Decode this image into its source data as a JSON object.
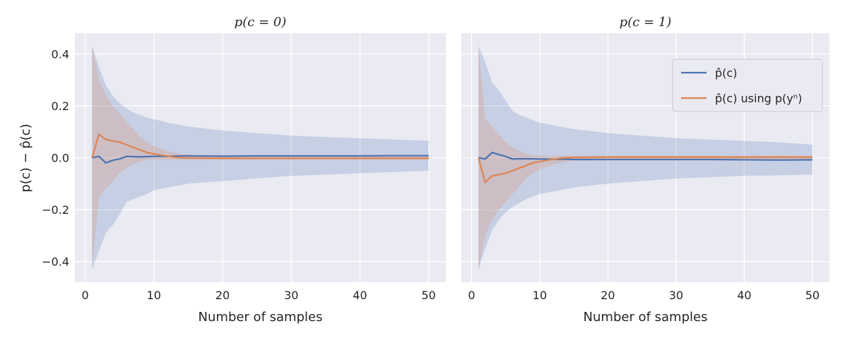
{
  "figure": {
    "ylabel": "p(c) − p̂(c)"
  },
  "legend": {
    "entries": [
      {
        "label": "p̂(c)",
        "color": "#4c72b0"
      },
      {
        "label": "p̂(c) using p(yⁿ)",
        "color": "#dd8452"
      }
    ],
    "placement": "top-right of right panel"
  },
  "chart_data": [
    {
      "type": "line",
      "title": "p(c = 0)",
      "xlabel": "Number of samples",
      "ylabel": "p(c) − p̂(c)",
      "xlim": [
        -1.5,
        52.5
      ],
      "ylim": [
        -0.48,
        0.48
      ],
      "xticks": [
        0,
        10,
        20,
        30,
        40,
        50
      ],
      "xtick_labels": [
        "0",
        "10",
        "20",
        "30",
        "40",
        "50"
      ],
      "yticks": [
        -0.4,
        -0.2,
        0.0,
        0.2,
        0.4
      ],
      "ytick_labels": [
        "−0.4",
        "−0.2",
        "0.0",
        "0.2",
        "0.4"
      ],
      "x": [
        1,
        2,
        3,
        4,
        5,
        6,
        7,
        8,
        9,
        10,
        11,
        12,
        13,
        14,
        15,
        20,
        25,
        30,
        35,
        40,
        45,
        50
      ],
      "series": [
        {
          "name": "p̂(c)",
          "color": "#4c72b0",
          "values": [
            0.0,
            0.005,
            -0.02,
            -0.01,
            -0.005,
            0.005,
            0.004,
            0.003,
            0.004,
            0.005,
            0.005,
            0.005,
            0.006,
            0.007,
            0.007,
            0.006,
            0.007,
            0.007,
            0.007,
            0.007,
            0.008,
            0.008
          ],
          "band_upper": [
            0.43,
            0.35,
            0.28,
            0.24,
            0.21,
            0.19,
            0.175,
            0.165,
            0.155,
            0.148,
            0.142,
            0.135,
            0.13,
            0.125,
            0.12,
            0.105,
            0.095,
            0.085,
            0.08,
            0.075,
            0.07,
            0.065
          ],
          "band_lower": [
            -0.43,
            -0.36,
            -0.29,
            -0.26,
            -0.22,
            -0.17,
            -0.16,
            -0.15,
            -0.14,
            -0.125,
            -0.12,
            -0.115,
            -0.11,
            -0.105,
            -0.1,
            -0.09,
            -0.08,
            -0.07,
            -0.065,
            -0.06,
            -0.055,
            -0.05
          ]
        },
        {
          "name": "p̂(c) using p(yⁿ)",
          "color": "#dd8452",
          "values": [
            0.0,
            0.09,
            0.07,
            0.065,
            0.06,
            0.05,
            0.04,
            0.03,
            0.02,
            0.015,
            0.01,
            0.006,
            0.002,
            0.0,
            -0.001,
            -0.002,
            -0.002,
            -0.002,
            -0.002,
            -0.002,
            -0.002,
            -0.002
          ],
          "band_upper": [
            0.43,
            0.3,
            0.24,
            0.2,
            0.17,
            0.14,
            0.11,
            0.08,
            0.06,
            0.045,
            0.035,
            0.025,
            0.02,
            0.015,
            0.012,
            0.01,
            0.01,
            0.01,
            0.01,
            0.01,
            0.01,
            0.01
          ],
          "band_lower": [
            -0.43,
            -0.15,
            -0.12,
            -0.09,
            -0.06,
            -0.04,
            -0.025,
            -0.015,
            -0.01,
            -0.008,
            -0.008,
            -0.008,
            -0.008,
            -0.008,
            -0.008,
            -0.008,
            -0.008,
            -0.008,
            -0.008,
            -0.008,
            -0.008,
            -0.008
          ]
        }
      ]
    },
    {
      "type": "line",
      "title": "p(c = 1)",
      "xlabel": "Number of samples",
      "ylabel": "",
      "xlim": [
        -1.5,
        52.5
      ],
      "ylim": [
        -0.48,
        0.48
      ],
      "xticks": [
        0,
        10,
        20,
        30,
        40,
        50
      ],
      "xtick_labels": [
        "0",
        "10",
        "20",
        "30",
        "40",
        "50"
      ],
      "yticks": [
        -0.4,
        -0.2,
        0.0,
        0.2,
        0.4
      ],
      "ytick_labels": [],
      "x": [
        1,
        2,
        3,
        4,
        5,
        6,
        7,
        8,
        9,
        10,
        11,
        12,
        13,
        14,
        15,
        20,
        25,
        30,
        35,
        40,
        45,
        50
      ],
      "series": [
        {
          "name": "p̂(c)",
          "color": "#4c72b0",
          "values": [
            0.0,
            -0.005,
            0.02,
            0.012,
            0.005,
            -0.005,
            -0.004,
            -0.004,
            -0.004,
            -0.005,
            -0.005,
            -0.006,
            -0.006,
            -0.006,
            -0.007,
            -0.007,
            -0.007,
            -0.007,
            -0.007,
            -0.008,
            -0.009,
            -0.008
          ],
          "band_upper": [
            0.43,
            0.37,
            0.29,
            0.26,
            0.22,
            0.18,
            0.165,
            0.155,
            0.145,
            0.135,
            0.13,
            0.125,
            0.12,
            0.115,
            0.11,
            0.095,
            0.085,
            0.075,
            0.07,
            0.065,
            0.06,
            0.05
          ],
          "band_lower": [
            -0.43,
            -0.35,
            -0.28,
            -0.24,
            -0.21,
            -0.19,
            -0.175,
            -0.16,
            -0.15,
            -0.14,
            -0.135,
            -0.13,
            -0.125,
            -0.12,
            -0.115,
            -0.1,
            -0.09,
            -0.08,
            -0.075,
            -0.07,
            -0.068,
            -0.065
          ]
        },
        {
          "name": "p̂(c) using p(yⁿ)",
          "color": "#dd8452",
          "values": [
            0.0,
            -0.095,
            -0.07,
            -0.065,
            -0.06,
            -0.05,
            -0.04,
            -0.03,
            -0.02,
            -0.015,
            -0.01,
            -0.006,
            -0.002,
            0.0,
            0.001,
            0.002,
            0.002,
            0.002,
            0.002,
            0.002,
            0.002,
            0.002
          ],
          "band_upper": [
            0.43,
            0.15,
            0.12,
            0.09,
            0.06,
            0.04,
            0.025,
            0.015,
            0.01,
            0.008,
            0.008,
            0.008,
            0.008,
            0.008,
            0.008,
            0.008,
            0.008,
            0.008,
            0.008,
            0.008,
            0.008,
            0.008
          ],
          "band_lower": [
            -0.43,
            -0.3,
            -0.24,
            -0.2,
            -0.17,
            -0.14,
            -0.11,
            -0.08,
            -0.06,
            -0.045,
            -0.035,
            -0.025,
            -0.02,
            -0.015,
            -0.012,
            -0.01,
            -0.01,
            -0.01,
            -0.01,
            -0.01,
            -0.01,
            -0.01
          ]
        }
      ]
    }
  ]
}
